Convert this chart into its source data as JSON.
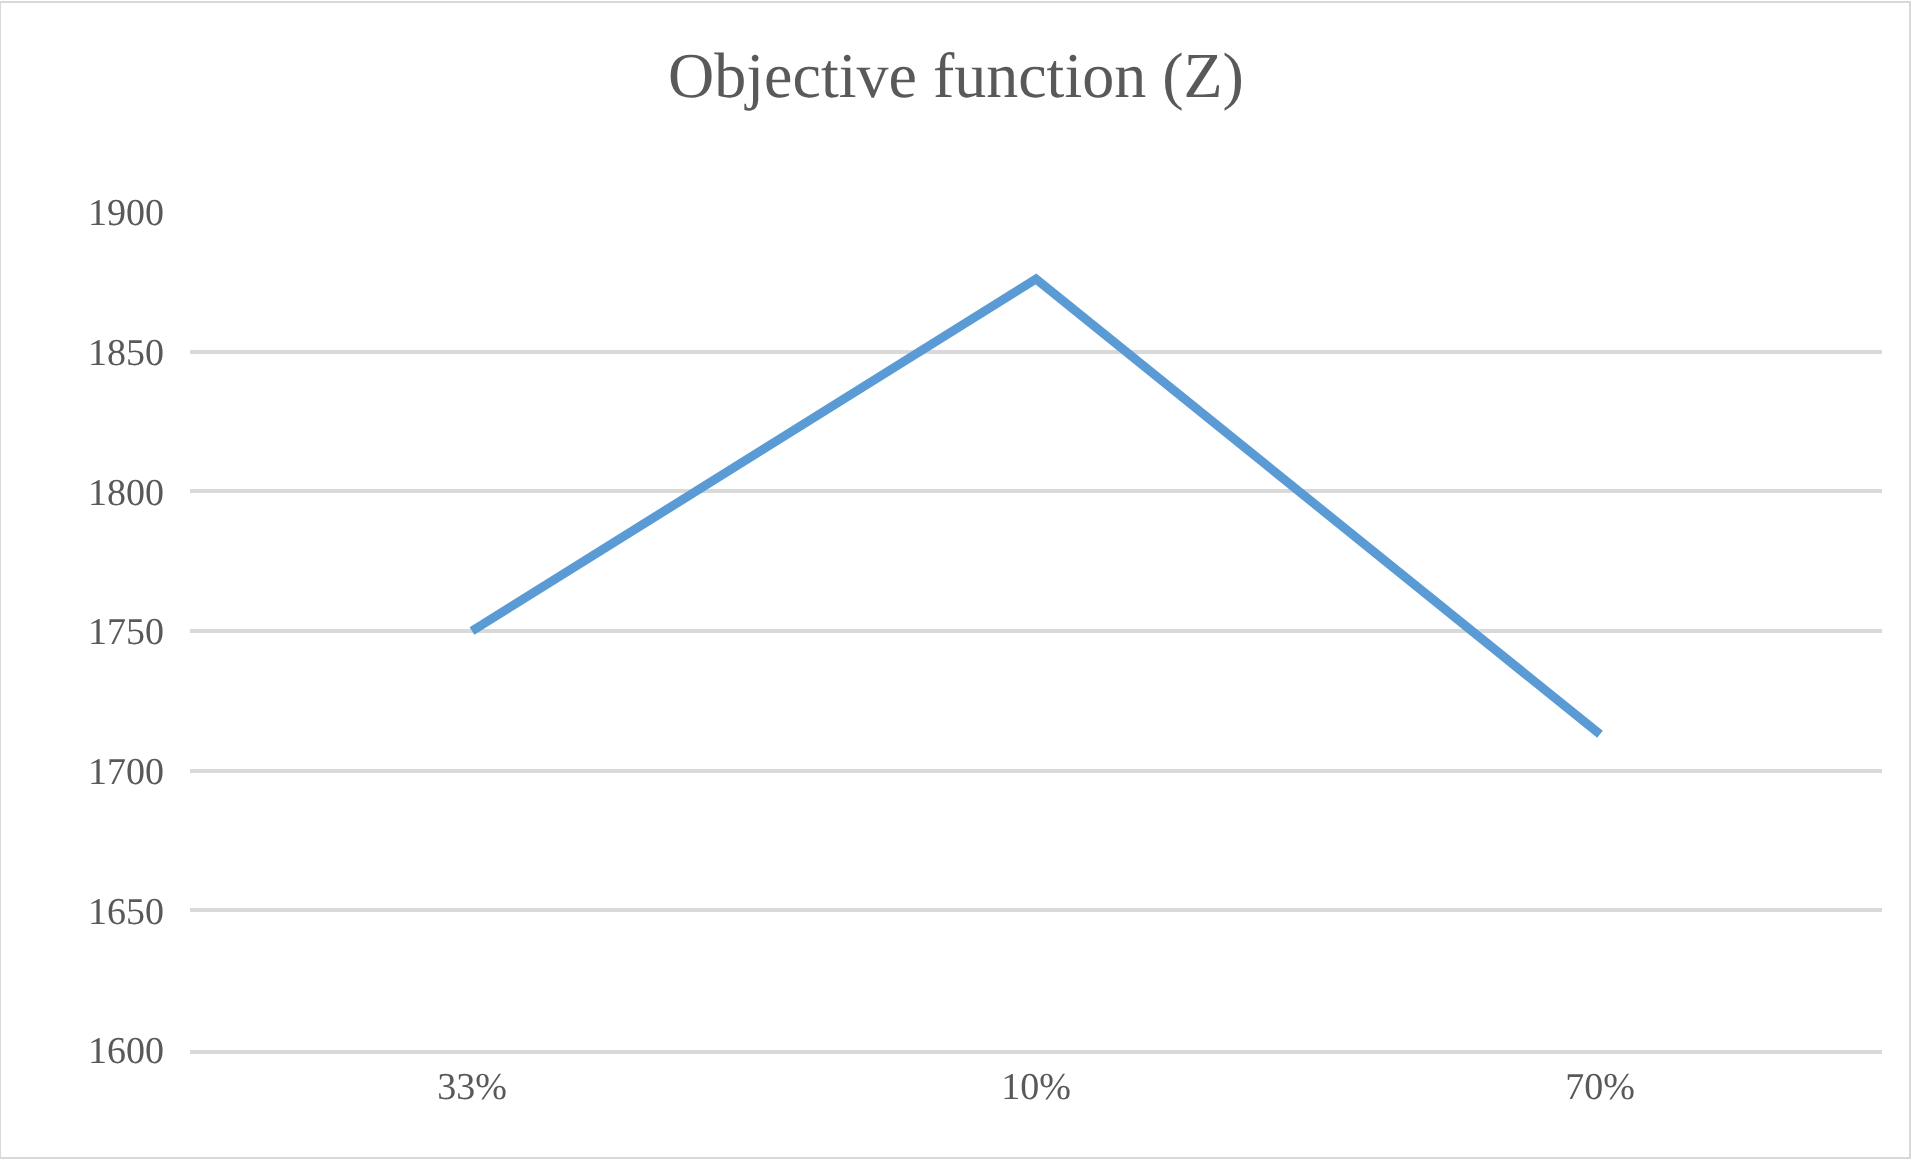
{
  "chart_data": {
    "type": "line",
    "title": "Objective function (Z)",
    "categories": [
      "33%",
      "10%",
      "70%"
    ],
    "series": [
      {
        "color": "#5b9bd5",
        "values": [
          1750,
          1876,
          1713
        ]
      }
    ],
    "ylim": [
      1600,
      1900
    ],
    "yticks": [
      1600,
      1650,
      1700,
      1750,
      1800,
      1850,
      1900
    ],
    "grid": "y",
    "marker": "none",
    "line_style": "solid"
  }
}
